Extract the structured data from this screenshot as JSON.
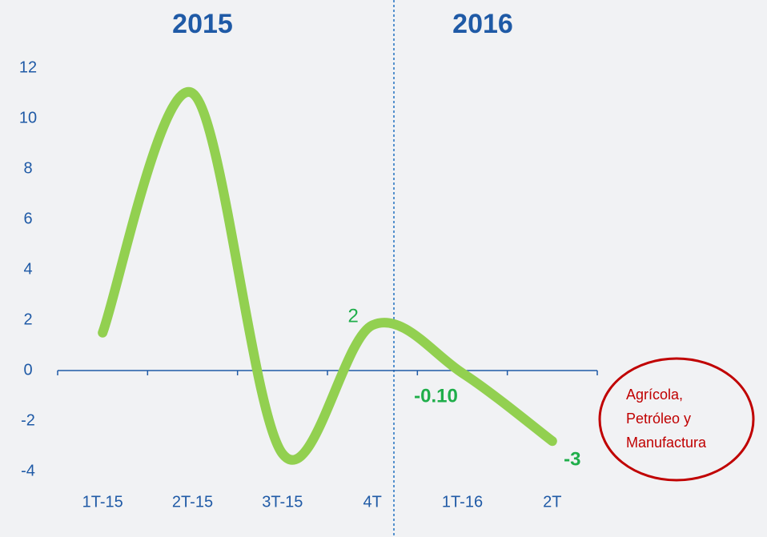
{
  "chart_data": {
    "type": "line",
    "periods": [
      "2015",
      "2016"
    ],
    "categories": [
      "1T-15",
      "2T-15",
      "3T-15",
      "4T",
      "1T-16",
      "2T"
    ],
    "values": [
      1.5,
      11,
      -3.3,
      1.8,
      -0.1,
      -2.8
    ],
    "value_labels": [
      null,
      null,
      null,
      "2",
      "-0.10",
      "-3"
    ],
    "color": "#92d050",
    "ylim": [
      -4,
      12
    ],
    "yticks": [
      -4,
      -2,
      0,
      2,
      4,
      6,
      8,
      10,
      12
    ],
    "note": [
      "Agrícola,",
      "Petróleo y",
      "Manufactura"
    ]
  }
}
